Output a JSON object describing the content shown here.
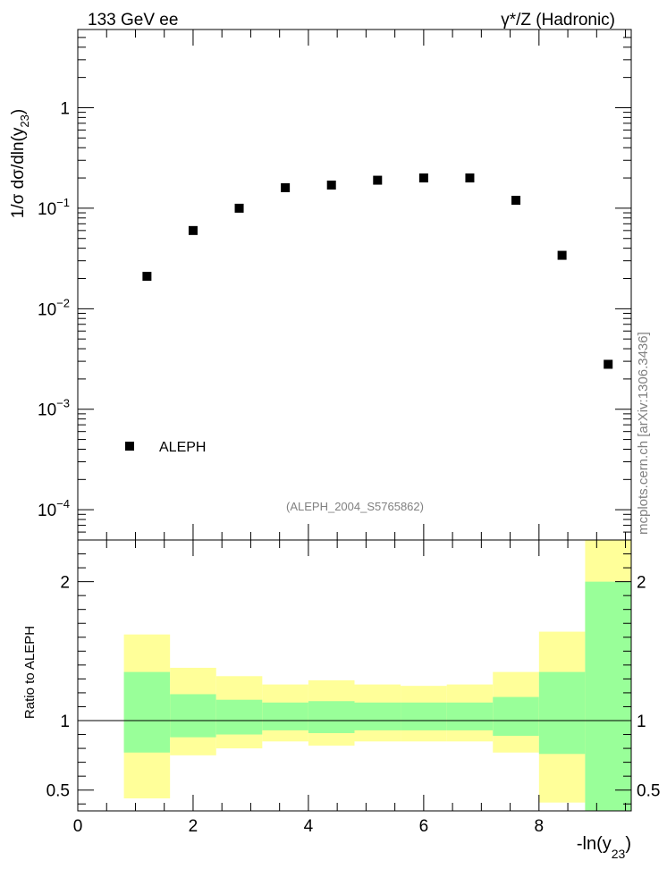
{
  "header": {
    "left_label": "133 GeV ee",
    "right_label": "γ*/Z (Hadronic)"
  },
  "watermark": "mcplots.cern.ch [arXiv:1306.3436]",
  "analysis_id": "(ALEPH_2004_S5765862)",
  "chart_data": [
    {
      "type": "scatter",
      "ylabel_parts": {
        "main": "1/σ  dσ/dln(y",
        "sub": "23",
        "close": ")"
      },
      "yscale": "log",
      "ylim": [
        5e-05,
        6
      ],
      "y_tick_labels": [
        {
          "value": 1,
          "base": "1",
          "exp": ""
        },
        {
          "value": 0.1,
          "base": "10",
          "exp": "−1"
        },
        {
          "value": 0.01,
          "base": "10",
          "exp": "−2"
        },
        {
          "value": 0.001,
          "base": "10",
          "exp": "−3"
        },
        {
          "value": 0.0001,
          "base": "10",
          "exp": "−4"
        }
      ],
      "xlim": [
        0,
        9.6
      ],
      "legend": {
        "label": "ALEPH",
        "position": "bottom-left"
      },
      "series": [
        {
          "name": "ALEPH",
          "color": "#000000",
          "x": [
            1.2,
            2.0,
            2.8,
            3.6,
            4.4,
            5.2,
            6.0,
            6.8,
            7.6,
            8.4,
            9.2
          ],
          "y": [
            0.021,
            0.06,
            0.1,
            0.16,
            0.17,
            0.19,
            0.2,
            0.2,
            0.12,
            0.034,
            0.0028
          ]
        }
      ]
    },
    {
      "type": "area",
      "ylabel": "Ratio to ALEPH",
      "xlabel_parts": {
        "main": "-ln(y",
        "sub": "23",
        "close": ")"
      },
      "xlim": [
        0,
        9.6
      ],
      "ylim": [
        0.35,
        2.3
      ],
      "x_ticks": [
        "0",
        "2",
        "4",
        "6",
        "8"
      ],
      "x_tick_values": [
        0,
        2,
        4,
        6,
        8
      ],
      "y_ticks": [
        "0.5",
        "1",
        "2"
      ],
      "y_tick_values": [
        0.5,
        1,
        2
      ],
      "reference_line": 1,
      "colors": {
        "inner": "#99ff99",
        "outer": "#ffff99"
      },
      "bins": [
        {
          "x_low": 0.8,
          "x_high": 1.6,
          "inner": [
            0.77,
            1.35
          ],
          "outer": [
            0.44,
            1.62
          ]
        },
        {
          "x_low": 1.6,
          "x_high": 2.4,
          "inner": [
            0.88,
            1.19
          ],
          "outer": [
            0.75,
            1.38
          ]
        },
        {
          "x_low": 2.4,
          "x_high": 3.2,
          "inner": [
            0.9,
            1.15
          ],
          "outer": [
            0.8,
            1.32
          ]
        },
        {
          "x_low": 3.2,
          "x_high": 4.0,
          "inner": [
            0.93,
            1.13
          ],
          "outer": [
            0.85,
            1.26
          ]
        },
        {
          "x_low": 4.0,
          "x_high": 4.8,
          "inner": [
            0.91,
            1.14
          ],
          "outer": [
            0.82,
            1.29
          ]
        },
        {
          "x_low": 4.8,
          "x_high": 5.6,
          "inner": [
            0.93,
            1.13
          ],
          "outer": [
            0.85,
            1.26
          ]
        },
        {
          "x_low": 5.6,
          "x_high": 6.4,
          "inner": [
            0.93,
            1.13
          ],
          "outer": [
            0.85,
            1.25
          ]
        },
        {
          "x_low": 6.4,
          "x_high": 7.2,
          "inner": [
            0.93,
            1.13
          ],
          "outer": [
            0.85,
            1.26
          ]
        },
        {
          "x_low": 7.2,
          "x_high": 8.0,
          "inner": [
            0.89,
            1.17
          ],
          "outer": [
            0.77,
            1.35
          ]
        },
        {
          "x_low": 8.0,
          "x_high": 8.8,
          "inner": [
            0.76,
            1.35
          ],
          "outer": [
            0.41,
            1.64
          ]
        },
        {
          "x_low": 8.8,
          "x_high": 9.6,
          "inner": [
            0.35,
            2.0
          ],
          "outer": [
            0.35,
            2.3
          ]
        }
      ]
    }
  ]
}
